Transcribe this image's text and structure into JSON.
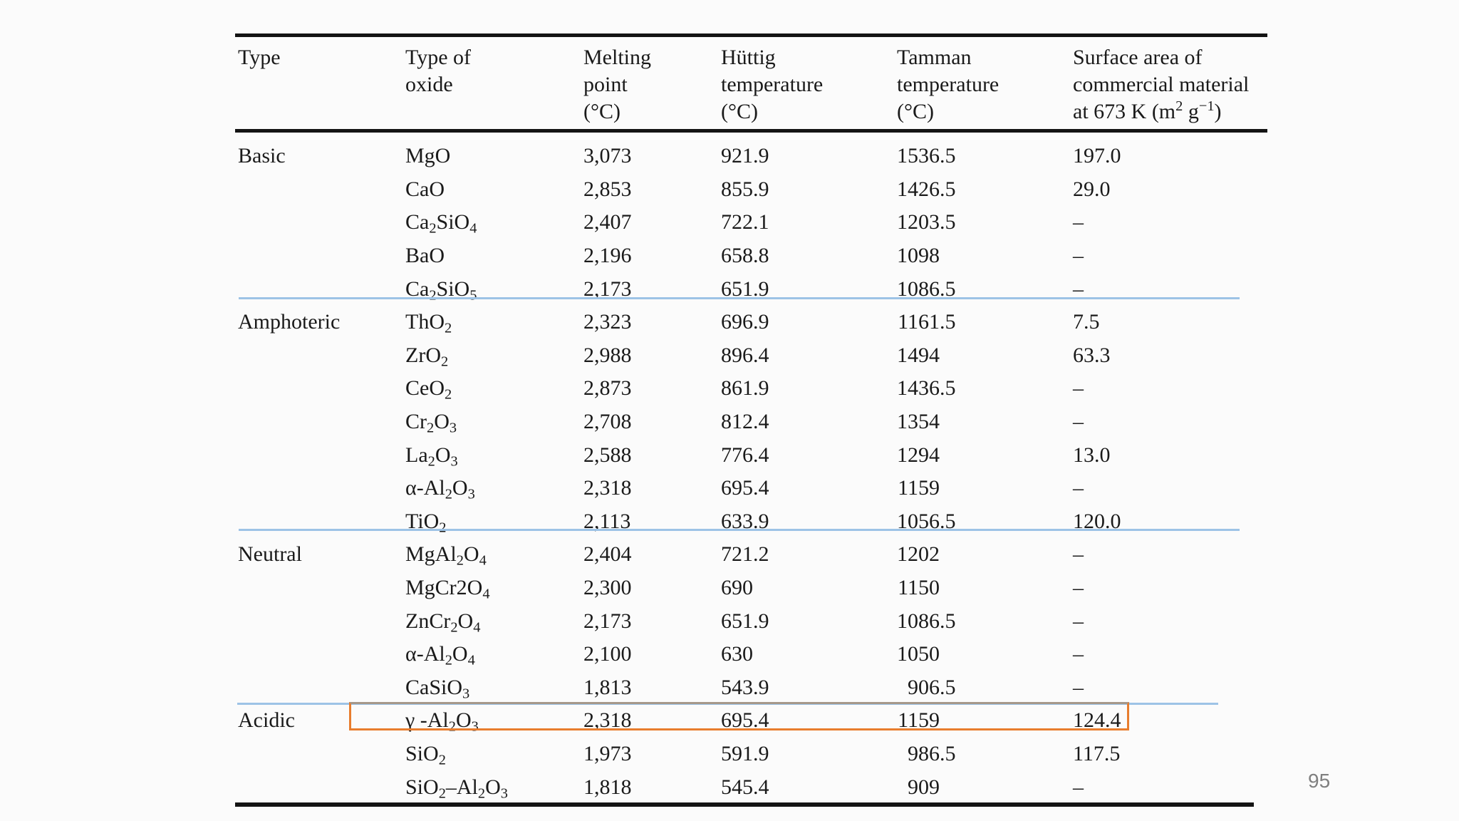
{
  "page": {
    "number": "95"
  },
  "colors": {
    "background": "#fbfbfb",
    "text": "#1a1a1a",
    "rule": "#141414",
    "separator_blue": "#9dc3e6",
    "highlight_orange": "#e87d2e",
    "highlight_box_top_edge": "#a6988a",
    "page_number_gray": "#7f7f7f"
  },
  "table": {
    "columns": [
      {
        "id": "type",
        "header_lines": [
          "Type"
        ]
      },
      {
        "id": "oxide",
        "header_lines": [
          "Type of",
          "oxide"
        ]
      },
      {
        "id": "melting",
        "header_lines": [
          "Melting",
          "point",
          "(°C)"
        ]
      },
      {
        "id": "huttig",
        "header_lines": [
          "Hüttig",
          "temperature",
          "(°C)"
        ]
      },
      {
        "id": "tamman",
        "header_lines": [
          "Tamman",
          "temperature",
          "(°C)"
        ]
      },
      {
        "id": "surface",
        "header_lines": [
          "Surface area of",
          "commercial material",
          "at 673 K (m^{2} g^{−1})"
        ]
      }
    ],
    "groups": [
      {
        "type": "Basic",
        "rows": [
          {
            "oxide": "MgO",
            "melting": "3,073",
            "huttig": "921.9",
            "tamman": "1536.5",
            "surface": "197.0"
          },
          {
            "oxide": "CaO",
            "melting": "2,853",
            "huttig": "855.9",
            "tamman": "1426.5",
            "surface": "29.0"
          },
          {
            "oxide": "Ca_{2}SiO_{4}",
            "melting": "2,407",
            "huttig": "722.1",
            "tamman": "1203.5",
            "surface": "–"
          },
          {
            "oxide": "BaO",
            "melting": "2,196",
            "huttig": "658.8",
            "tamman": "1098",
            "surface": "–"
          },
          {
            "oxide": "Ca_{2}SiO_{5}",
            "melting": "2,173",
            "huttig": "651.9",
            "tamman": "1086.5",
            "surface": "–"
          }
        ]
      },
      {
        "type": "Amphoteric",
        "rows": [
          {
            "oxide": "ThO_{2}",
            "melting": "2,323",
            "huttig": "696.9",
            "tamman": "1161.5",
            "surface": "7.5"
          },
          {
            "oxide": "ZrO_{2}",
            "melting": "2,988",
            "huttig": "896.4",
            "tamman": "1494",
            "surface": "63.3"
          },
          {
            "oxide": "CeO_{2}",
            "melting": "2,873",
            "huttig": "861.9",
            "tamman": "1436.5",
            "surface": "–"
          },
          {
            "oxide": "Cr_{2}O_{3}",
            "melting": "2,708",
            "huttig": "812.4",
            "tamman": "1354",
            "surface": "–"
          },
          {
            "oxide": "La_{2}O_{3}",
            "melting": "2,588",
            "huttig": "776.4",
            "tamman": "1294",
            "surface": "13.0"
          },
          {
            "oxide": "α-Al_{2}O_{3}",
            "melting": "2,318",
            "huttig": "695.4",
            "tamman": "1159",
            "surface": "–"
          },
          {
            "oxide": "TiO_{2}",
            "melting": "2,113",
            "huttig": "633.9",
            "tamman": "1056.5",
            "surface": "120.0"
          }
        ]
      },
      {
        "type": "Neutral",
        "rows": [
          {
            "oxide": "MgAl_{2}O_{4}",
            "melting": "2,404",
            "huttig": "721.2",
            "tamman": "1202",
            "surface": "–"
          },
          {
            "oxide": "MgCr2O_{4}",
            "melting": "2,300",
            "huttig": "690",
            "tamman": "1150",
            "surface": "–"
          },
          {
            "oxide": "ZnCr_{2}O_{4}",
            "melting": "2,173",
            "huttig": "651.9",
            "tamman": "1086.5",
            "surface": "–"
          },
          {
            "oxide": "α-Al_{2}O_{4}",
            "melting": "2,100",
            "huttig": "630",
            "tamman": "1050",
            "surface": "–"
          },
          {
            "oxide": "CaSiO_{3}",
            "melting": "1,813",
            "huttig": "543.9",
            "tamman": "906.5",
            "surface": "–"
          }
        ]
      },
      {
        "type": "Acidic",
        "rows": [
          {
            "oxide": "γ -Al_{2}O_{3}",
            "melting": "2,318",
            "huttig": "695.4",
            "tamman": "1159",
            "surface": "124.4",
            "highlighted": true
          },
          {
            "oxide": "SiO_{2}",
            "melting": "1,973",
            "huttig": "591.9",
            "tamman": "986.5",
            "surface": "117.5"
          },
          {
            "oxide": "SiO_{2}–Al_{2}O_{3}",
            "melting": "1,818",
            "huttig": "545.4",
            "tamman": "909",
            "surface": "–"
          }
        ]
      }
    ]
  }
}
